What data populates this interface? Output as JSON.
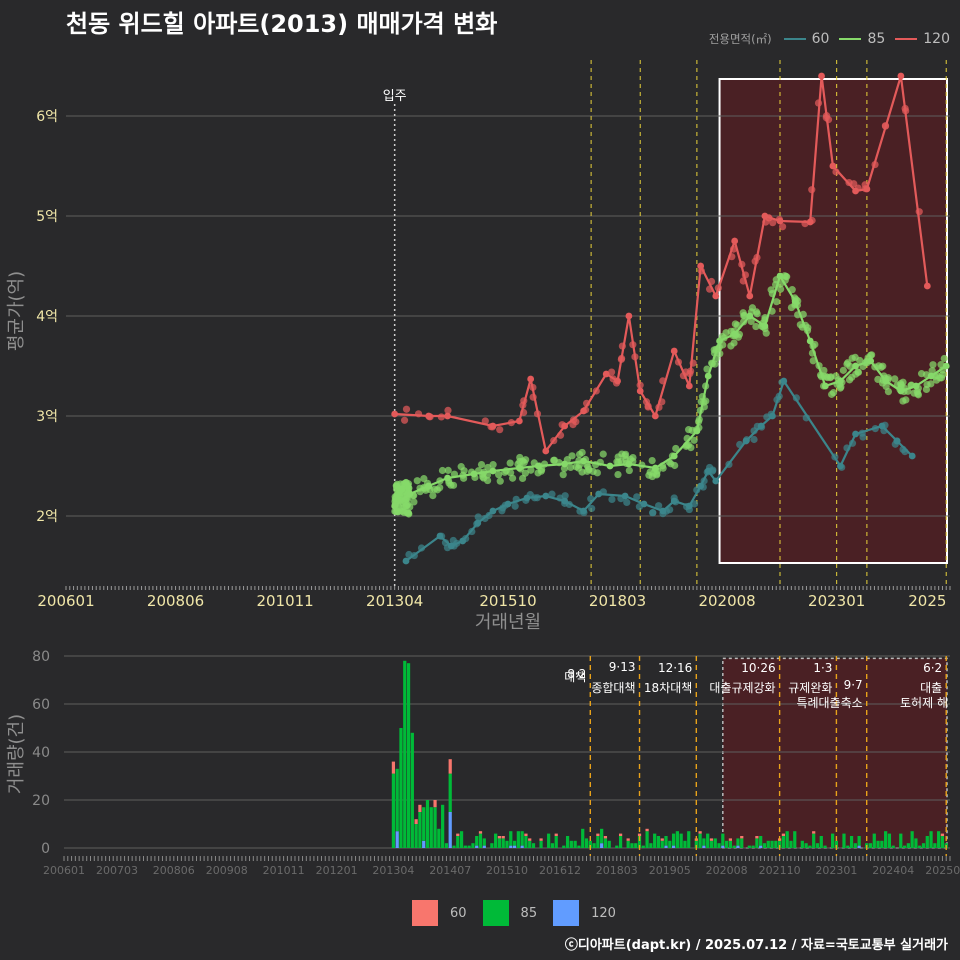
{
  "title": "천동 위드힐 아파트(2013) 매매가격 변화",
  "legend": {
    "title": "전용면적(㎡)",
    "items": [
      {
        "label": "60",
        "color": "#3b858b"
      },
      {
        "label": "85",
        "color": "#86d96a"
      },
      {
        "label": "120",
        "color": "#e35a5a"
      }
    ]
  },
  "bar_legend": [
    {
      "label": "60",
      "color": "#f8766d"
    },
    {
      "label": "85",
      "color": "#00ba38"
    },
    {
      "label": "120",
      "color": "#619cff"
    }
  ],
  "footer": "ⓒ디아파트(dapt.kr) / 2025.07.12 / 자료=국토교통부 실거래가",
  "chart_data": [
    {
      "type": "line",
      "title": "천동 위드힐 아파트(2013) 매매가격 변화",
      "xlabel": "거래년월",
      "ylabel": "평균가(억)",
      "ylim": [
        1.3,
        6.8
      ],
      "xlim": [
        "2006-01",
        "2025-07"
      ],
      "x_ticks": [
        "200601",
        "200806",
        "201011",
        "201304",
        "201510",
        "201803",
        "202008",
        "202301",
        "2025"
      ],
      "y_ticks": [
        2,
        3,
        4,
        5,
        6
      ],
      "y_tick_labels": [
        "2억",
        "3억",
        "4억",
        "5억",
        "6억"
      ],
      "annotation": {
        "label": "입주",
        "x": "2013-04"
      },
      "policy_lines": [
        "2017-08",
        "2018-09",
        "2019-12",
        "2021-10",
        "2023-01",
        "2023-09",
        "2025-06"
      ],
      "highlight_range": [
        "2020-06",
        "2025-07"
      ],
      "series": [
        {
          "name": "60",
          "x": [
            "2013-07",
            "2014-04",
            "2014-07",
            "2014-10",
            "2015-02",
            "2015-06",
            "2015-10",
            "2016-03",
            "2016-08",
            "2017-01",
            "2017-06",
            "2017-10",
            "2018-05",
            "2018-10",
            "2019-03",
            "2019-06",
            "2019-10",
            "2020-01",
            "2020-03",
            "2020-05",
            "2021-01",
            "2021-05",
            "2021-08",
            "2021-11",
            "2023-02",
            "2023-06",
            "2024-01",
            "2024-05",
            "2024-09"
          ],
          "values": [
            1.55,
            1.8,
            1.7,
            1.75,
            1.93,
            2.05,
            2.12,
            2.18,
            2.2,
            2.15,
            2.05,
            2.22,
            2.2,
            2.12,
            2.05,
            2.15,
            2.1,
            2.3,
            2.45,
            2.35,
            2.75,
            2.9,
            3.0,
            3.35,
            2.5,
            2.82,
            2.9,
            2.75,
            2.6
          ]
        },
        {
          "name": "85",
          "x": [
            "2013-04",
            "2013-08",
            "2014-01",
            "2014-06",
            "2015-01",
            "2015-06",
            "2016-01",
            "2016-06",
            "2017-01",
            "2017-06",
            "2018-01",
            "2018-06",
            "2019-01",
            "2019-06",
            "2019-12",
            "2020-03",
            "2020-06",
            "2020-10",
            "2021-02",
            "2021-06",
            "2021-10",
            "2022-02",
            "2022-06",
            "2022-10",
            "2023-02",
            "2023-06",
            "2023-10",
            "2024-02",
            "2024-06",
            "2024-10",
            "2025-02",
            "2025-06"
          ],
          "values": [
            2.1,
            2.22,
            2.3,
            2.38,
            2.42,
            2.45,
            2.48,
            2.5,
            2.52,
            2.55,
            2.5,
            2.52,
            2.48,
            2.6,
            2.85,
            3.4,
            3.75,
            3.82,
            4.0,
            3.9,
            4.4,
            4.15,
            3.75,
            3.3,
            3.35,
            3.5,
            3.55,
            3.35,
            3.25,
            3.3,
            3.4,
            3.5
          ]
        },
        {
          "name": "120",
          "x": [
            "2013-04",
            "2014-01",
            "2014-06",
            "2015-06",
            "2016-01",
            "2016-04",
            "2016-08",
            "2017-01",
            "2017-06",
            "2017-12",
            "2018-03",
            "2018-06",
            "2018-09",
            "2019-01",
            "2019-06",
            "2019-10",
            "2020-01",
            "2020-05",
            "2020-10",
            "2021-02",
            "2021-06",
            "2021-10",
            "2022-06",
            "2022-09",
            "2022-12",
            "2023-06",
            "2023-09",
            "2024-06",
            "2025-01"
          ],
          "values": [
            3.02,
            3.0,
            3.0,
            2.9,
            2.95,
            3.37,
            2.65,
            2.9,
            3.05,
            3.42,
            3.35,
            4.0,
            3.25,
            3.0,
            3.65,
            3.3,
            4.5,
            4.2,
            4.75,
            4.2,
            5.0,
            4.95,
            4.94,
            6.4,
            5.5,
            5.25,
            5.27,
            6.4,
            4.3
          ]
        }
      ]
    },
    {
      "type": "bar",
      "xlabel": "",
      "ylabel": "거래량(건)",
      "ylim": [
        0,
        80
      ],
      "y_ticks": [
        0,
        20,
        40,
        60,
        80
      ],
      "x_ticks": [
        "200601",
        "200703",
        "200806",
        "200908",
        "201011",
        "201201",
        "201304",
        "201407",
        "201510",
        "201612",
        "201803",
        "201905",
        "202008",
        "202110",
        "202301",
        "202404",
        "202506"
      ],
      "stacked": true,
      "series": [
        {
          "name": "60",
          "color": "#f8766d"
        },
        {
          "name": "85",
          "color": "#00ba38"
        },
        {
          "name": "120",
          "color": "#619cff"
        }
      ],
      "notable_volumes": {
        "2013-04": 36,
        "2013-05": 33,
        "2013-06": 50,
        "2013-07": 78,
        "2013-08": 77,
        "2013-09": 48,
        "2014-07": 37
      },
      "policy_events": [
        {
          "date": "2017-08",
          "label_top": "8·2",
          "label_bottom": "대책"
        },
        {
          "date": "2018-09",
          "label_top": "9·13",
          "label_bottom": "종합대책"
        },
        {
          "date": "2019-12",
          "label_top": "12·16",
          "label_bottom": "18차대책"
        },
        {
          "date": "2021-10",
          "label_top": "10·26",
          "label_bottom": "대출규제강화"
        },
        {
          "date": "2023-01",
          "label_top": "1·3",
          "label_bottom": "규제완화"
        },
        {
          "date": "2023-09",
          "label_top": "9·7",
          "label_bottom": "특례대출축소"
        },
        {
          "date": "2025-06",
          "label_top": "6·2",
          "label_bottom": "대출"
        }
      ],
      "extra_labels": [
        "토허제 해"
      ]
    }
  ]
}
